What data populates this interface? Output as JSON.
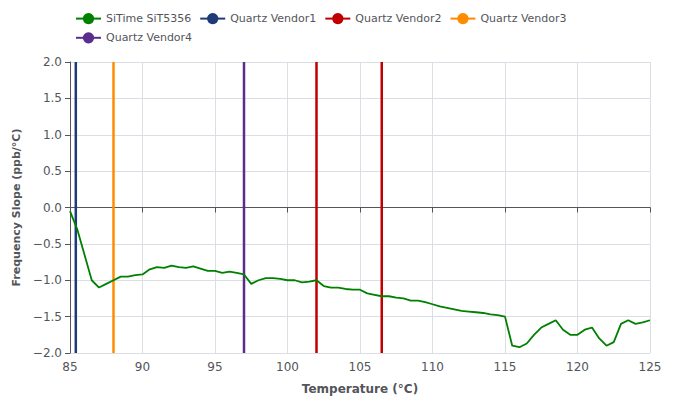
{
  "chart_data": {
    "type": "line",
    "xlabel": "Temperature (°C)",
    "ylabel": "Frequency Slope (ppb/°C)",
    "xlim": [
      85,
      125
    ],
    "ylim": [
      -2,
      2
    ],
    "xticks": [
      85,
      90,
      95,
      100,
      105,
      110,
      115,
      120,
      125
    ],
    "yticks": [
      {
        "value": -2,
        "label": "−2.0"
      },
      {
        "value": -1.5,
        "label": "−1.5"
      },
      {
        "value": -1,
        "label": "−1.0"
      },
      {
        "value": -0.5,
        "label": "−0.5"
      },
      {
        "value": 0,
        "label": "0.0"
      },
      {
        "value": 0.5,
        "label": "0.5"
      },
      {
        "value": 1,
        "label": "1.0"
      },
      {
        "value": 1.5,
        "label": "1.5"
      },
      {
        "value": 2,
        "label": "2.0"
      }
    ],
    "grid": true,
    "legend": "top",
    "x": [
      85,
      85.5,
      86,
      86.5,
      87,
      87.5,
      88,
      88.5,
      89,
      89.5,
      90,
      90.5,
      91,
      91.5,
      92,
      92.5,
      93,
      93.5,
      94,
      94.5,
      95,
      95.5,
      96,
      96.5,
      97,
      97.5,
      98,
      98.5,
      99,
      99.5,
      100,
      100.5,
      101,
      101.5,
      102,
      102.5,
      103,
      103.5,
      104,
      104.5,
      105,
      105.5,
      106,
      106.5,
      107,
      107.5,
      108,
      108.5,
      109,
      109.5,
      110,
      110.5,
      111,
      111.5,
      112,
      112.5,
      113,
      113.5,
      114,
      114.5,
      115,
      115.5,
      116,
      116.5,
      117,
      117.5,
      118,
      118.5,
      119,
      119.5,
      120,
      120.5,
      121,
      121.5,
      122,
      122.5,
      123,
      123.5,
      124,
      124.5,
      125
    ],
    "series": [
      {
        "name": "SiTime SiT5356",
        "type": "line",
        "color": "#008000",
        "values": [
          -0.05,
          -0.3,
          -0.65,
          -1.0,
          -1.1,
          -1.05,
          -1.0,
          -0.95,
          -0.95,
          -0.93,
          -0.92,
          -0.85,
          -0.82,
          -0.83,
          -0.8,
          -0.82,
          -0.83,
          -0.81,
          -0.84,
          -0.87,
          -0.87,
          -0.9,
          -0.88,
          -0.9,
          -0.92,
          -1.05,
          -1.0,
          -0.97,
          -0.97,
          -0.98,
          -1.0,
          -1.0,
          -1.03,
          -1.02,
          -1.0,
          -1.08,
          -1.1,
          -1.1,
          -1.12,
          -1.13,
          -1.13,
          -1.18,
          -1.2,
          -1.22,
          -1.22,
          -1.24,
          -1.25,
          -1.28,
          -1.28,
          -1.3,
          -1.33,
          -1.36,
          -1.38,
          -1.4,
          -1.42,
          -1.43,
          -1.44,
          -1.45,
          -1.47,
          -1.48,
          -1.5,
          -1.9,
          -1.92,
          -1.87,
          -1.75,
          -1.65,
          -1.6,
          -1.55,
          -1.68,
          -1.75,
          -1.75,
          -1.68,
          -1.65,
          -1.8,
          -1.9,
          -1.85,
          -1.6,
          -1.55,
          -1.6,
          -1.58,
          -1.55
        ]
      },
      {
        "name": "Quartz Vendor1",
        "type": "vline",
        "color": "#1f3a7a",
        "x": [
          85.4
        ]
      },
      {
        "name": "Quartz Vendor2",
        "type": "vline",
        "color": "#c00000",
        "x": [
          102.0,
          106.5
        ]
      },
      {
        "name": "Quartz Vendor3",
        "type": "vline",
        "color": "#ff8c00",
        "x": [
          88.0
        ]
      },
      {
        "name": "Quartz Vendor4",
        "type": "vline",
        "color": "#5b2d8e",
        "x": [
          97.0
        ]
      }
    ]
  }
}
